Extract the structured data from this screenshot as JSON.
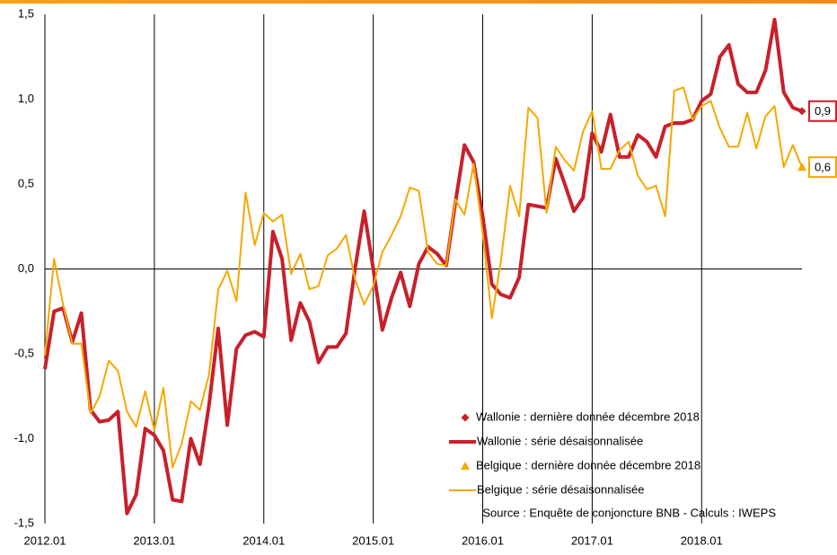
{
  "chart_data": {
    "type": "line",
    "categories": [
      "2012.01",
      null,
      null,
      null,
      null,
      null,
      null,
      null,
      null,
      null,
      null,
      null,
      "2013.01",
      null,
      null,
      null,
      null,
      null,
      null,
      null,
      null,
      null,
      null,
      null,
      "2014.01",
      null,
      null,
      null,
      null,
      null,
      null,
      null,
      null,
      null,
      null,
      null,
      "2015.01",
      null,
      null,
      null,
      null,
      null,
      null,
      null,
      null,
      null,
      null,
      null,
      "2016.01",
      null,
      null,
      null,
      null,
      null,
      null,
      null,
      null,
      null,
      null,
      null,
      "2017.01",
      null,
      null,
      null,
      null,
      null,
      null,
      null,
      null,
      null,
      null,
      null,
      "2018.01",
      null,
      null,
      null,
      null,
      null,
      null,
      null,
      null,
      null,
      null,
      null
    ],
    "ylim": [
      -1.5,
      1.5
    ],
    "yticks": [
      {
        "value": -1.5,
        "label": "-1,5"
      },
      {
        "value": -1,
        "label": "-1,0"
      },
      {
        "value": -0.5,
        "label": "-0,5"
      },
      {
        "value": 0,
        "label": "0,0"
      },
      {
        "value": 0.5,
        "label": "0,5"
      },
      {
        "value": 1,
        "label": "1,0"
      },
      {
        "value": 1.5,
        "label": "1,5"
      }
    ],
    "series": [
      {
        "name": "Wallonie : dernière donnée décembre 2018",
        "color": "#c8202a",
        "marker": "diamond",
        "values": [
          null,
          null,
          null,
          null,
          null,
          null,
          null,
          null,
          null,
          null,
          null,
          null,
          null,
          null,
          null,
          null,
          null,
          null,
          null,
          null,
          null,
          null,
          null,
          null,
          null,
          null,
          null,
          null,
          null,
          null,
          null,
          null,
          null,
          null,
          null,
          null,
          null,
          null,
          null,
          null,
          null,
          null,
          null,
          null,
          null,
          null,
          null,
          null,
          null,
          null,
          null,
          null,
          null,
          null,
          null,
          null,
          null,
          null,
          null,
          null,
          null,
          null,
          null,
          null,
          null,
          null,
          null,
          null,
          null,
          null,
          null,
          null,
          null,
          null,
          null,
          null,
          null,
          null,
          null,
          null,
          null,
          null,
          null,
          0.93
        ],
        "value_labels": [
          null,
          null,
          null,
          null,
          null,
          null,
          null,
          null,
          null,
          null,
          null,
          null,
          null,
          null,
          null,
          null,
          null,
          null,
          null,
          null,
          null,
          null,
          null,
          null,
          null,
          null,
          null,
          null,
          null,
          null,
          null,
          null,
          null,
          null,
          null,
          null,
          null,
          null,
          null,
          null,
          null,
          null,
          null,
          null,
          null,
          null,
          null,
          null,
          null,
          null,
          null,
          null,
          null,
          null,
          null,
          null,
          null,
          null,
          null,
          null,
          null,
          null,
          null,
          null,
          null,
          null,
          null,
          null,
          null,
          null,
          null,
          null,
          null,
          null,
          null,
          null,
          null,
          null,
          null,
          null,
          null,
          null,
          null,
          "0,9"
        ]
      },
      {
        "name": "Wallonie : série désaisonnalisée",
        "color": "#c8202a",
        "line_width": 4,
        "values": [
          -0.59,
          -0.25,
          -0.23,
          -0.43,
          -0.26,
          -0.83,
          -0.9,
          -0.89,
          -0.84,
          -1.44,
          -1.33,
          -0.94,
          -0.98,
          -1.07,
          -1.36,
          -1.37,
          -1.0,
          -1.15,
          -0.8,
          -0.35,
          -0.92,
          -0.47,
          -0.39,
          -0.37,
          -0.4,
          0.22,
          0.06,
          -0.42,
          -0.2,
          -0.31,
          -0.55,
          -0.46,
          -0.46,
          -0.38,
          0.0,
          0.34,
          0.0,
          -0.36,
          -0.17,
          -0.02,
          -0.22,
          0.03,
          0.13,
          0.09,
          0.02,
          0.39,
          0.73,
          0.63,
          0.31,
          -0.09,
          -0.15,
          -0.17,
          -0.05,
          0.38,
          0.37,
          0.36,
          0.65,
          0.5,
          0.34,
          0.42,
          0.8,
          0.69,
          0.91,
          0.66,
          0.66,
          0.79,
          0.75,
          0.66,
          0.84,
          0.86,
          0.86,
          0.88,
          0.99,
          1.03,
          1.25,
          1.32,
          1.09,
          1.04,
          1.04,
          1.17,
          1.47,
          1.04,
          0.95,
          0.93
        ]
      },
      {
        "name": "Belgique : dernière donnée décembre 2018",
        "color": "#f5a800",
        "marker": "triangle",
        "values": [
          null,
          null,
          null,
          null,
          null,
          null,
          null,
          null,
          null,
          null,
          null,
          null,
          null,
          null,
          null,
          null,
          null,
          null,
          null,
          null,
          null,
          null,
          null,
          null,
          null,
          null,
          null,
          null,
          null,
          null,
          null,
          null,
          null,
          null,
          null,
          null,
          null,
          null,
          null,
          null,
          null,
          null,
          null,
          null,
          null,
          null,
          null,
          null,
          null,
          null,
          null,
          null,
          null,
          null,
          null,
          null,
          null,
          null,
          null,
          null,
          null,
          null,
          null,
          null,
          null,
          null,
          null,
          null,
          null,
          null,
          null,
          null,
          null,
          null,
          null,
          null,
          null,
          null,
          null,
          null,
          null,
          null,
          null,
          0.6
        ],
        "value_labels": [
          null,
          null,
          null,
          null,
          null,
          null,
          null,
          null,
          null,
          null,
          null,
          null,
          null,
          null,
          null,
          null,
          null,
          null,
          null,
          null,
          null,
          null,
          null,
          null,
          null,
          null,
          null,
          null,
          null,
          null,
          null,
          null,
          null,
          null,
          null,
          null,
          null,
          null,
          null,
          null,
          null,
          null,
          null,
          null,
          null,
          null,
          null,
          null,
          null,
          null,
          null,
          null,
          null,
          null,
          null,
          null,
          null,
          null,
          null,
          null,
          null,
          null,
          null,
          null,
          null,
          null,
          null,
          null,
          null,
          null,
          null,
          null,
          null,
          null,
          null,
          null,
          null,
          null,
          null,
          null,
          null,
          null,
          null,
          "0,6"
        ]
      },
      {
        "name": "Belgique : série désaisonnalisée",
        "color": "#f5a800",
        "line_width": 2,
        "values": [
          -0.51,
          0.06,
          -0.21,
          -0.44,
          -0.44,
          -0.85,
          -0.75,
          -0.54,
          -0.6,
          -0.84,
          -0.93,
          -0.72,
          -0.95,
          -0.7,
          -1.17,
          -1.03,
          -0.78,
          -0.83,
          -0.62,
          -0.12,
          -0.01,
          -0.19,
          0.45,
          0.14,
          0.33,
          0.28,
          0.32,
          -0.03,
          0.09,
          -0.12,
          -0.1,
          0.08,
          0.12,
          0.2,
          -0.06,
          -0.21,
          -0.1,
          0.1,
          0.2,
          0.31,
          0.48,
          0.46,
          0.1,
          0.03,
          0.02,
          0.41,
          0.32,
          0.62,
          0.21,
          -0.29,
          0.05,
          0.49,
          0.31,
          0.95,
          0.89,
          0.33,
          0.72,
          0.64,
          0.58,
          0.81,
          0.93,
          0.59,
          0.59,
          0.7,
          0.75,
          0.55,
          0.47,
          0.49,
          0.31,
          1.05,
          1.07,
          0.88,
          0.96,
          0.99,
          0.83,
          0.72,
          0.72,
          0.92,
          0.71,
          0.9,
          0.96,
          0.6,
          0.73,
          0.6
        ]
      }
    ],
    "source": "Source : Enquête de conjoncture BNB - Calculs : IWEPS"
  }
}
